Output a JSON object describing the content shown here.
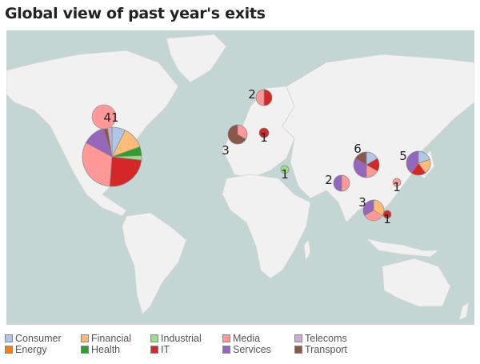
{
  "title": "Global view of past year's exits",
  "legend": [
    {
      "key": "consumer",
      "label": "Consumer",
      "color": "#aec7e8"
    },
    {
      "key": "financial",
      "label": "Financial",
      "color": "#ffbb78"
    },
    {
      "key": "industrial",
      "label": "Industrial",
      "color": "#98df8a"
    },
    {
      "key": "media",
      "label": "Media",
      "color": "#ff9896"
    },
    {
      "key": "telecoms",
      "label": "Telecoms",
      "color": "#c5b0d5"
    },
    {
      "key": "energy",
      "label": "Energy",
      "color": "#ff7f0e"
    },
    {
      "key": "health",
      "label": "Health",
      "color": "#2ca02c"
    },
    {
      "key": "it",
      "label": "IT",
      "color": "#d62728"
    },
    {
      "key": "services",
      "label": "Services",
      "color": "#9467bd"
    },
    {
      "key": "transport",
      "label": "Transport",
      "color": "#8c564b"
    }
  ],
  "exits": [
    {
      "total": "41",
      "breakdown": {
        "consumer": 3,
        "financial": 5,
        "health": 2,
        "industrial": 1,
        "it": 10,
        "media": 13,
        "services": 5,
        "transport": 1,
        "telecoms": 1
      }
    },
    {
      "total": "2",
      "breakdown": {
        "media": 1,
        "it": 1
      }
    },
    {
      "total": "3",
      "breakdown": {
        "media": 1,
        "transport": 2
      }
    },
    {
      "total": "1",
      "breakdown": {
        "it": 1
      }
    },
    {
      "total": "1",
      "breakdown": {
        "industrial": 1
      }
    },
    {
      "total": "2",
      "breakdown": {
        "media": 1,
        "services": 1
      }
    },
    {
      "total": "6",
      "breakdown": {
        "consumer": 1,
        "it": 1,
        "media": 1,
        "services": 2,
        "transport": 1
      }
    },
    {
      "total": "5",
      "breakdown": {
        "consumer": 1,
        "financial": 1,
        "it": 1,
        "services": 2
      }
    },
    {
      "total": "1",
      "breakdown": {
        "media": 1
      }
    },
    {
      "total": "3",
      "breakdown": {
        "financial": 1,
        "media": 1,
        "services": 1
      }
    },
    {
      "total": "1",
      "breakdown": {
        "it": 1
      }
    }
  ],
  "colors": {
    "sea": "#c3d6d4",
    "land": "#f1f1f1",
    "border": "#d8d8d8"
  }
}
